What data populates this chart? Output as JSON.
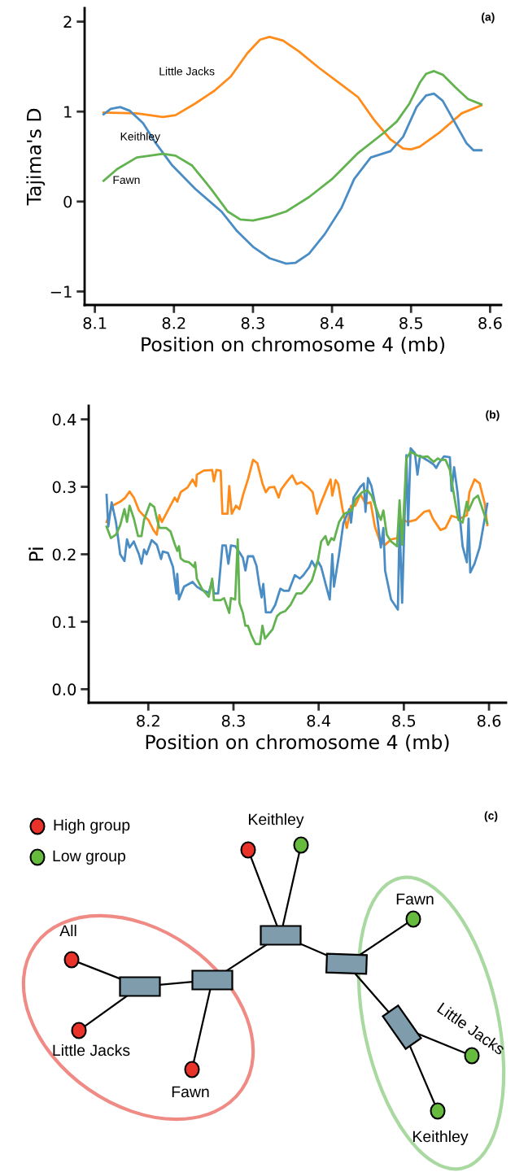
{
  "chart_data": [
    {
      "type": "line",
      "xlabel": "Position on chromosome 4 (mb)",
      "ylabel": "Tajima's D",
      "annotations": [
        "(a)"
      ],
      "xlim": [
        8.087,
        8.614
      ],
      "ylim": [
        -1.15,
        2.15
      ],
      "xticks": [
        8.1,
        8.2,
        8.3,
        8.4,
        8.5,
        8.6
      ],
      "yticks": [
        {
          "value": -1,
          "label": "−1"
        },
        0,
        1,
        2
      ],
      "grid": false,
      "legend": false,
      "marker": "none",
      "line_style": "solid",
      "series": [
        {
          "name": "Little Jacks",
          "color": "#ff8c1a",
          "x": [
            8.111,
            8.153,
            8.186,
            8.202,
            8.227,
            8.251,
            8.272,
            8.293,
            8.309,
            8.321,
            8.338,
            8.358,
            8.383,
            8.412,
            8.433,
            8.453,
            8.474,
            8.49,
            8.5,
            8.511,
            8.535,
            8.564,
            8.589
          ],
          "values": [
            0.99,
            0.98,
            0.94,
            0.96,
            1.09,
            1.23,
            1.39,
            1.65,
            1.8,
            1.83,
            1.79,
            1.67,
            1.49,
            1.3,
            1.16,
            0.91,
            0.69,
            0.59,
            0.58,
            0.61,
            0.76,
            0.98,
            1.07
          ]
        },
        {
          "name": "Keithley",
          "color": "#4a8cc4",
          "x": [
            8.111,
            8.12,
            8.132,
            8.144,
            8.161,
            8.177,
            8.198,
            8.227,
            8.26,
            8.28,
            8.301,
            8.321,
            8.342,
            8.354,
            8.371,
            8.391,
            8.412,
            8.428,
            8.449,
            8.474,
            8.49,
            8.507,
            8.519,
            8.529,
            8.54,
            8.556,
            8.57,
            8.579,
            8.589
          ],
          "values": [
            0.97,
            1.03,
            1.05,
            1.01,
            0.87,
            0.65,
            0.4,
            0.14,
            -0.11,
            -0.33,
            -0.51,
            -0.63,
            -0.69,
            -0.68,
            -0.58,
            -0.36,
            -0.07,
            0.25,
            0.49,
            0.56,
            0.72,
            1.05,
            1.18,
            1.2,
            1.12,
            0.87,
            0.65,
            0.57,
            0.57
          ]
        },
        {
          "name": "Fawn",
          "color": "#62b34f",
          "x": [
            8.111,
            8.128,
            8.153,
            8.186,
            8.202,
            8.223,
            8.247,
            8.268,
            8.284,
            8.3,
            8.321,
            8.342,
            8.371,
            8.4,
            8.433,
            8.465,
            8.482,
            8.498,
            8.511,
            8.519,
            8.529,
            8.54,
            8.556,
            8.572,
            8.589
          ],
          "values": [
            0.23,
            0.36,
            0.49,
            0.53,
            0.51,
            0.4,
            0.14,
            -0.11,
            -0.2,
            -0.21,
            -0.17,
            -0.11,
            0.05,
            0.25,
            0.54,
            0.76,
            0.89,
            1.09,
            1.32,
            1.42,
            1.45,
            1.41,
            1.27,
            1.14,
            1.08
          ]
        }
      ]
    },
    {
      "type": "line",
      "xlabel": "Position on chromosome 4 (mb)",
      "ylabel": "Pi",
      "annotations": [
        "(b)"
      ],
      "xlim": [
        8.13,
        8.62
      ],
      "ylim": [
        -0.02,
        0.42
      ],
      "xticks": [
        8.2,
        8.3,
        8.4,
        8.5,
        8.6
      ],
      "yticks": [
        {
          "value": 0,
          "label": "0.0"
        },
        0.1,
        0.2,
        0.3,
        0.4
      ],
      "grid": false,
      "legend": false,
      "marker": "none",
      "line_style": "solid",
      "series": [
        {
          "color": "#ff8c1a",
          "x": [
            8.151,
            8.158,
            8.167,
            8.173,
            8.178,
            8.183,
            8.189,
            8.194,
            8.2,
            8.206,
            8.21,
            8.213,
            8.216,
            8.223,
            8.231,
            8.234,
            8.238,
            8.246,
            8.252,
            8.256,
            8.257,
            8.265,
            8.275,
            8.277,
            8.28,
            8.285,
            8.287,
            8.293,
            8.295,
            8.298,
            8.303,
            8.307,
            8.311,
            8.317,
            8.323,
            8.328,
            8.334,
            8.338,
            8.342,
            8.348,
            8.353,
            8.356,
            8.363,
            8.369,
            8.374,
            8.38,
            8.388,
            8.393,
            8.396,
            8.398,
            8.403,
            8.41,
            8.414,
            8.416,
            8.42,
            8.423,
            8.428,
            8.433,
            8.438,
            8.443,
            8.449,
            8.455,
            8.461,
            8.466,
            8.472,
            8.478,
            8.485,
            8.492,
            8.499,
            8.505,
            8.514,
            8.524,
            8.53,
            8.534,
            8.543,
            8.549,
            8.556,
            8.566,
            8.574,
            8.577,
            8.583,
            8.589,
            8.595,
            8.598
          ],
          "values": [
            0.248,
            0.272,
            0.278,
            0.284,
            0.293,
            0.284,
            0.265,
            0.258,
            0.251,
            0.236,
            0.229,
            0.258,
            0.248,
            0.265,
            0.284,
            0.278,
            0.292,
            0.299,
            0.311,
            0.301,
            0.318,
            0.324,
            0.325,
            0.308,
            0.325,
            0.324,
            0.26,
            0.26,
            0.301,
            0.26,
            0.272,
            0.267,
            0.287,
            0.311,
            0.34,
            0.335,
            0.305,
            0.292,
            0.299,
            0.3,
            0.284,
            0.296,
            0.308,
            0.317,
            0.304,
            0.307,
            0.299,
            0.292,
            0.272,
            0.26,
            0.277,
            0.299,
            0.311,
            0.287,
            0.31,
            0.304,
            0.267,
            0.239,
            0.272,
            0.272,
            0.289,
            0.275,
            0.277,
            0.241,
            0.219,
            0.214,
            0.222,
            0.224,
            0.251,
            0.248,
            0.251,
            0.263,
            0.265,
            0.253,
            0.236,
            0.239,
            0.257,
            0.253,
            0.258,
            0.292,
            0.311,
            0.305,
            0.275,
            0.243
          ]
        },
        {
          "color": "#4a8cc4",
          "x": [
            8.151,
            8.153,
            8.157,
            8.162,
            8.167,
            8.172,
            8.175,
            8.178,
            8.183,
            8.189,
            8.192,
            8.195,
            8.198,
            8.204,
            8.21,
            8.215,
            8.217,
            8.223,
            8.229,
            8.233,
            8.234,
            8.236,
            8.242,
            8.252,
            8.257,
            8.263,
            8.271,
            8.275,
            8.277,
            8.282,
            8.287,
            8.291,
            8.294,
            8.297,
            8.302,
            8.307,
            8.311,
            8.314,
            8.317,
            8.323,
            8.327,
            8.33,
            8.333,
            8.335,
            8.338,
            8.344,
            8.349,
            8.355,
            8.359,
            8.365,
            8.372,
            8.378,
            8.382,
            8.389,
            8.392,
            8.396,
            8.399,
            8.403,
            8.409,
            8.413,
            8.416,
            8.418,
            8.424,
            8.429,
            8.436,
            8.438,
            8.441,
            8.449,
            8.453,
            8.455,
            8.458,
            8.462,
            8.468,
            8.473,
            8.476,
            8.478,
            8.485,
            8.493,
            8.495,
            8.498,
            8.503,
            8.505,
            8.508,
            8.513,
            8.516,
            8.519,
            8.528,
            8.535,
            8.538,
            8.541,
            8.547,
            8.554,
            8.556,
            8.559,
            8.563,
            8.569,
            8.574,
            8.576,
            8.578,
            8.583,
            8.589,
            8.598
          ],
          "values": [
            0.288,
            0.241,
            0.277,
            0.248,
            0.2,
            0.19,
            0.222,
            0.21,
            0.219,
            0.2,
            0.186,
            0.207,
            0.2,
            0.221,
            0.214,
            0.193,
            0.204,
            0.202,
            0.181,
            0.142,
            0.171,
            0.133,
            0.152,
            0.159,
            0.152,
            0.147,
            0.143,
            0.161,
            0.142,
            0.142,
            0.213,
            0.213,
            0.186,
            0.213,
            0.212,
            0.203,
            0.195,
            0.176,
            0.197,
            0.197,
            0.183,
            0.157,
            0.136,
            0.156,
            0.114,
            0.114,
            0.125,
            0.149,
            0.146,
            0.146,
            0.169,
            0.164,
            0.169,
            0.181,
            0.19,
            0.181,
            0.19,
            0.181,
            0.152,
            0.133,
            0.2,
            0.152,
            0.2,
            0.246,
            0.267,
            0.247,
            0.284,
            0.3,
            0.305,
            0.263,
            0.313,
            0.301,
            0.263,
            0.21,
            0.239,
            0.176,
            0.133,
            0.118,
            0.248,
            0.128,
            0.347,
            0.243,
            0.357,
            0.35,
            0.318,
            0.346,
            0.339,
            0.333,
            0.328,
            0.335,
            0.345,
            0.344,
            0.294,
            0.329,
            0.292,
            0.212,
            0.188,
            0.253,
            0.173,
            0.186,
            0.21,
            0.275
          ]
        },
        {
          "color": "#62b34f",
          "x": [
            8.151,
            8.156,
            8.162,
            8.167,
            8.172,
            8.175,
            8.178,
            8.183,
            8.188,
            8.192,
            8.195,
            8.202,
            8.207,
            8.21,
            8.213,
            8.221,
            8.226,
            8.231,
            8.234,
            8.236,
            8.238,
            8.242,
            8.248,
            8.254,
            8.255,
            8.257,
            8.263,
            8.271,
            8.275,
            8.277,
            8.285,
            8.289,
            8.295,
            8.297,
            8.302,
            8.305,
            8.307,
            8.311,
            8.314,
            8.317,
            8.321,
            8.326,
            8.331,
            8.334,
            8.337,
            8.346,
            8.351,
            8.355,
            8.361,
            8.367,
            8.374,
            8.38,
            8.384,
            8.392,
            8.399,
            8.403,
            8.408,
            8.411,
            8.415,
            8.418,
            8.424,
            8.43,
            8.439,
            8.443,
            8.451,
            8.457,
            8.462,
            8.47,
            8.473,
            8.476,
            8.48,
            8.485,
            8.492,
            8.495,
            8.498,
            8.503,
            8.508,
            8.512,
            8.52,
            8.528,
            8.535,
            8.54,
            8.543,
            8.549,
            8.554,
            8.559,
            8.564,
            8.569,
            8.574,
            8.576,
            8.582,
            8.587,
            8.598
          ],
          "values": [
            0.241,
            0.224,
            0.229,
            0.243,
            0.267,
            0.248,
            0.272,
            0.253,
            0.227,
            0.227,
            0.251,
            0.275,
            0.27,
            0.253,
            0.239,
            0.239,
            0.234,
            0.215,
            0.205,
            0.212,
            0.194,
            0.19,
            0.188,
            0.181,
            0.188,
            0.164,
            0.149,
            0.137,
            0.164,
            0.132,
            0.132,
            0.135,
            0.113,
            0.135,
            0.133,
            0.222,
            0.128,
            0.113,
            0.094,
            0.094,
            0.08,
            0.067,
            0.067,
            0.094,
            0.075,
            0.089,
            0.108,
            0.113,
            0.116,
            0.125,
            0.142,
            0.142,
            0.147,
            0.161,
            0.19,
            0.219,
            0.227,
            0.214,
            0.224,
            0.221,
            0.248,
            0.26,
            0.265,
            0.281,
            0.292,
            0.295,
            0.287,
            0.26,
            0.251,
            0.265,
            0.229,
            0.219,
            0.212,
            0.28,
            0.214,
            0.342,
            0.352,
            0.349,
            0.344,
            0.345,
            0.337,
            0.342,
            0.34,
            0.34,
            0.325,
            0.287,
            0.251,
            0.247,
            0.278,
            0.265,
            0.282,
            0.287,
            0.246
          ]
        }
      ]
    },
    {
      "type": "other",
      "annotations": [
        "(c)",
        "High group",
        "Low group",
        "Keithley",
        "All",
        "Little Jacks",
        "Fawn",
        "Fawn",
        "Little Jacks",
        "Keithley"
      ]
    }
  ]
}
